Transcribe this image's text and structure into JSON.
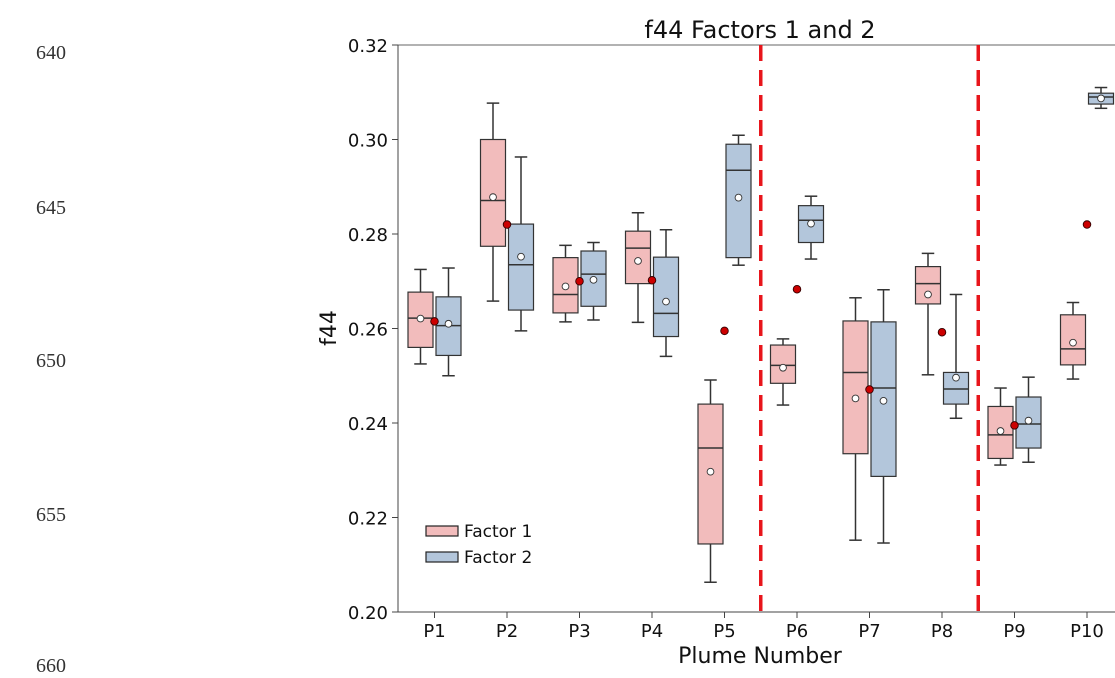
{
  "line_numbers": [
    "640",
    "645",
    "650",
    "655",
    "660"
  ],
  "chart_data": {
    "type": "box",
    "title": "f44 Factors 1 and 2",
    "xlabel": "Plume Number",
    "ylabel": "f44",
    "ylim": [
      0.2,
      0.32
    ],
    "yticks": [
      "0.20",
      "0.22",
      "0.24",
      "0.26",
      "0.28",
      "0.30",
      "0.32"
    ],
    "categories": [
      "P1",
      "P2",
      "P3",
      "P4",
      "P5",
      "P6",
      "P7",
      "P8",
      "P9",
      "P10"
    ],
    "dividers_after": [
      "P5",
      "P8"
    ],
    "divider_color": "#e8151b",
    "legend_position": "lower-left",
    "series": [
      {
        "name": "Factor 1",
        "fill": "#f2bcbc",
        "boxes": [
          {
            "min": 0.2525,
            "q1": 0.256,
            "median": 0.2622,
            "q3": 0.2677,
            "max": 0.2725,
            "mean": 0.2621
          },
          {
            "min": 0.2658,
            "q1": 0.2774,
            "median": 0.2871,
            "q3": 0.3,
            "max": 0.3077,
            "mean": 0.2878
          },
          {
            "min": 0.2614,
            "q1": 0.2633,
            "median": 0.2672,
            "q3": 0.275,
            "max": 0.2776,
            "mean": 0.2689
          },
          {
            "min": 0.2613,
            "q1": 0.2695,
            "median": 0.277,
            "q3": 0.2806,
            "max": 0.2845,
            "mean": 0.2743
          },
          {
            "min": 0.2063,
            "q1": 0.2144,
            "median": 0.2347,
            "q3": 0.244,
            "max": 0.2491,
            "mean": 0.2297
          },
          {
            "min": 0.2438,
            "q1": 0.2484,
            "median": 0.2522,
            "q3": 0.2565,
            "max": 0.2578,
            "mean": 0.2517
          },
          {
            "min": 0.2152,
            "q1": 0.2335,
            "median": 0.2507,
            "q3": 0.2616,
            "max": 0.2665,
            "mean": 0.2452
          },
          {
            "min": 0.2502,
            "q1": 0.2652,
            "median": 0.2695,
            "q3": 0.2731,
            "max": 0.2759,
            "mean": 0.2672
          },
          {
            "min": 0.2311,
            "q1": 0.2325,
            "median": 0.2375,
            "q3": 0.2435,
            "max": 0.2474,
            "mean": 0.2383
          },
          {
            "min": 0.2493,
            "q1": 0.2523,
            "median": 0.2557,
            "q3": 0.2629,
            "max": 0.2655,
            "mean": 0.257
          }
        ]
      },
      {
        "name": "Factor 2",
        "fill": "#b3c6db",
        "boxes": [
          {
            "min": 0.25,
            "q1": 0.2543,
            "median": 0.2606,
            "q3": 0.2667,
            "max": 0.2728,
            "mean": 0.261
          },
          {
            "min": 0.2595,
            "q1": 0.2639,
            "median": 0.2735,
            "q3": 0.2821,
            "max": 0.2963,
            "mean": 0.2752
          },
          {
            "min": 0.2618,
            "q1": 0.2647,
            "median": 0.2715,
            "q3": 0.2764,
            "max": 0.2782,
            "mean": 0.2703
          },
          {
            "min": 0.2541,
            "q1": 0.2583,
            "median": 0.2632,
            "q3": 0.2751,
            "max": 0.2809,
            "mean": 0.2657
          },
          {
            "min": 0.2734,
            "q1": 0.275,
            "median": 0.2935,
            "q3": 0.299,
            "max": 0.3009,
            "mean": 0.2877
          },
          {
            "min": 0.2747,
            "q1": 0.2782,
            "median": 0.2829,
            "q3": 0.286,
            "max": 0.288,
            "mean": 0.2822
          },
          {
            "min": 0.2146,
            "q1": 0.2287,
            "median": 0.2474,
            "q3": 0.2614,
            "max": 0.2682,
            "mean": 0.2447
          },
          {
            "min": 0.241,
            "q1": 0.244,
            "median": 0.2472,
            "q3": 0.2507,
            "max": 0.2672,
            "mean": 0.2496
          },
          {
            "min": 0.2317,
            "q1": 0.2347,
            "median": 0.2398,
            "q3": 0.2455,
            "max": 0.2497,
            "mean": 0.2405
          },
          {
            "min": 0.3066,
            "q1": 0.3075,
            "median": 0.309,
            "q3": 0.3098,
            "max": 0.311,
            "mean": 0.3087
          }
        ]
      }
    ],
    "reference_points": [
      0.2615,
      0.282,
      0.27,
      0.2702,
      0.2595,
      0.2683,
      0.2471,
      0.2592,
      0.2395,
      0.282
    ],
    "reference_color": "#cc0000"
  }
}
